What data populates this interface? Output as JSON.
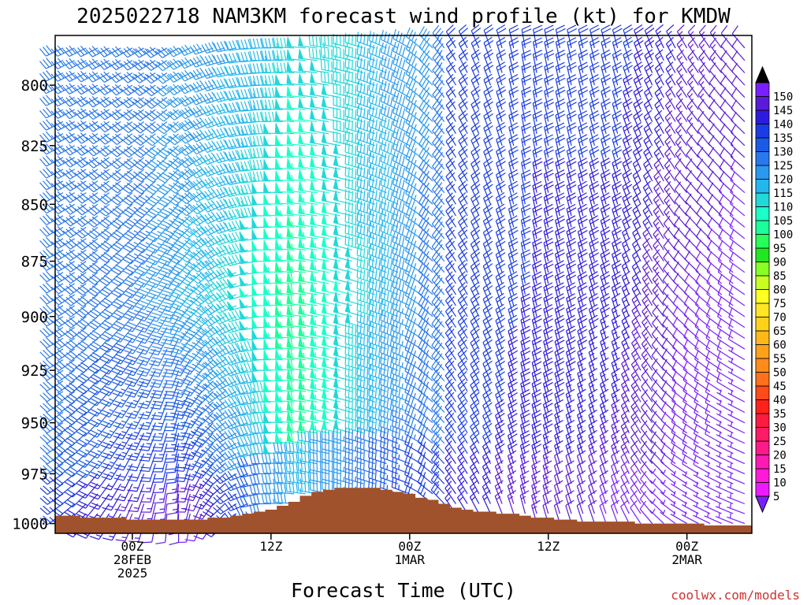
{
  "chart_data": {
    "type": "wind_barb_profile",
    "title": "2025022718 NAM3KM forecast wind profile (kt) for KMDW",
    "xlabel": "Forecast Time (UTC)",
    "ylabel": "",
    "credit": "coolwx.com/models",
    "y_axis": {
      "scale": "pressure (hPa), reversed",
      "ylim": [
        1005,
        780
      ],
      "ticks": [
        "800",
        "825",
        "850",
        "875",
        "900",
        "925",
        "950",
        "975",
        "1000"
      ]
    },
    "x_axis": {
      "start": "2025-02-27 18Z",
      "step_hours": 1,
      "ticks": [
        {
          "hour": 6,
          "lines": [
            "00Z",
            "28FEB",
            "2025"
          ]
        },
        {
          "hour": 18,
          "lines": [
            "12Z"
          ]
        },
        {
          "hour": 30,
          "lines": [
            "00Z",
            "1MAR"
          ]
        },
        {
          "hour": 42,
          "lines": [
            "12Z"
          ]
        },
        {
          "hour": 54,
          "lines": [
            "00Z",
            "2MAR"
          ]
        }
      ],
      "hours_shown": 60
    },
    "colorbar": {
      "labels": [
        "5",
        "10",
        "15",
        "20",
        "25",
        "30",
        "35",
        "40",
        "45",
        "50",
        "55",
        "60",
        "65",
        "70",
        "75",
        "80",
        "85",
        "90",
        "95",
        "100",
        "105",
        "110",
        "115",
        "120",
        "125",
        "130",
        "135",
        "140",
        "145",
        "150"
      ],
      "colors": [
        "#7a1fff",
        "#5a1ad8",
        "#2d1ae0",
        "#1a3ce6",
        "#1a5ae6",
        "#2a78ee",
        "#2a98ee",
        "#22b8ee",
        "#22d8d8",
        "#1affc8",
        "#1aff9a",
        "#28ff5a",
        "#22e622",
        "#88ff22",
        "#c8ff22",
        "#ffff22",
        "#ffe622",
        "#ffd21a",
        "#ffb81a",
        "#ffa01a",
        "#ff8c1a",
        "#ff701a",
        "#ff4a1a",
        "#ff221a",
        "#ff1a40",
        "#ff1a66",
        "#ff1a8c",
        "#ff1ab4",
        "#ff1ad8",
        "#ee1aff"
      ]
    },
    "surface_pressure": [
      996,
      996,
      997,
      997,
      997,
      997,
      998,
      998,
      998,
      998,
      998,
      998,
      998,
      997,
      997,
      996,
      995,
      994,
      993,
      991,
      989,
      986,
      984,
      983,
      982,
      982,
      982,
      982,
      983,
      984,
      985,
      987,
      988,
      990,
      992,
      993,
      994,
      994,
      995,
      995,
      996,
      997,
      997,
      998,
      998,
      999,
      999,
      999,
      999,
      999,
      1000,
      1000,
      1000,
      1000,
      1000,
      1000,
      1001,
      1001,
      1001,
      1001
    ],
    "levels_hpa": [
      780,
      785,
      790,
      795,
      800,
      805,
      810,
      815,
      820,
      825,
      830,
      835,
      840,
      845,
      850,
      855,
      860,
      865,
      870,
      875,
      880,
      885,
      890,
      895,
      900,
      905,
      910,
      915,
      920,
      925,
      930,
      935,
      940,
      945,
      950,
      955,
      960,
      965,
      970,
      975,
      980,
      985,
      990,
      995,
      1000
    ],
    "direction_keyframes": {
      "hours": [
        0,
        10,
        18,
        24,
        30,
        34,
        40,
        48,
        54,
        59
      ],
      "top": [
        245,
        240,
        270,
        280,
        300,
        330,
        350,
        345,
        330,
        320
      ],
      "bottom": [
        235,
        180,
        270,
        285,
        290,
        325,
        345,
        340,
        300,
        290
      ]
    },
    "speed_keyframes": {
      "hours": [
        0,
        6,
        12,
        18,
        21,
        26,
        30,
        33,
        34,
        40,
        48,
        54,
        59
      ],
      "top": [
        32,
        32,
        36,
        42,
        48,
        45,
        38,
        35,
        20,
        20,
        22,
        15,
        12
      ],
      "mid": [
        32,
        32,
        42,
        52,
        58,
        48,
        38,
        32,
        22,
        20,
        18,
        10,
        8
      ],
      "bottom": [
        30,
        18,
        12,
        40,
        58,
        45,
        32,
        30,
        22,
        18,
        12,
        8,
        6
      ]
    }
  }
}
